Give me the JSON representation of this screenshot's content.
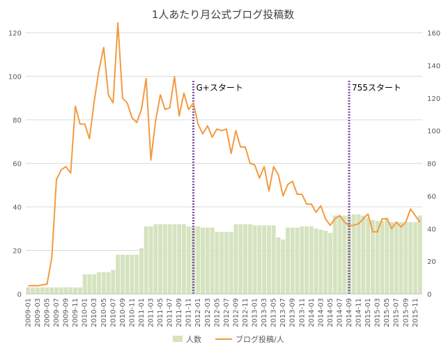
{
  "chart_data": {
    "type": "bar+line",
    "title": "1人あたり月公式ブログ投稿数",
    "colors": {
      "bar": "#d5e3bf",
      "line": "#f39a3e",
      "marker": "#7a54a6",
      "grid": "#d9d9d9"
    },
    "y_left": {
      "ylim": [
        0,
        120
      ],
      "ticks": [
        0,
        20,
        40,
        60,
        80,
        100,
        120
      ]
    },
    "y_right": {
      "ylim": [
        0,
        160
      ],
      "ticks": [
        0,
        20,
        40,
        60,
        80,
        100,
        120,
        140,
        160
      ]
    },
    "grid": true,
    "legend_position": "bottom",
    "categories": [
      "2009-01",
      "2009-02",
      "2009-03",
      "2009-04",
      "2009-05",
      "2009-06",
      "2009-07",
      "2009-08",
      "2009-09",
      "2009-10",
      "2009-11",
      "2009-12",
      "2010-01",
      "2010-02",
      "2010-03",
      "2010-04",
      "2010-05",
      "2010-06",
      "2010-07",
      "2010-08",
      "2010-09",
      "2010-10",
      "2010-11",
      "2010-12",
      "2011-01",
      "2011-02",
      "2011-03",
      "2011-04",
      "2011-05",
      "2011-06",
      "2011-07",
      "2011-08",
      "2011-09",
      "2011-10",
      "2011-11",
      "2011-12",
      "2012-01",
      "2012-02",
      "2012-03",
      "2012-04",
      "2012-05",
      "2012-06",
      "2012-07",
      "2012-08",
      "2012-09",
      "2012-10",
      "2012-11",
      "2012-12",
      "2013-01",
      "2013-02",
      "2013-03",
      "2013-04",
      "2013-05",
      "2013-06",
      "2013-07",
      "2013-08",
      "2013-09",
      "2013-10",
      "2013-11",
      "2013-12",
      "2014-01",
      "2014-02",
      "2014-03",
      "2014-04",
      "2014-05",
      "2014-06",
      "2014-07",
      "2014-08",
      "2014-09",
      "2014-10",
      "2014-11",
      "2014-12",
      "2015-01",
      "2015-02",
      "2015-03",
      "2015-04",
      "2015-05",
      "2015-06",
      "2015-07",
      "2015-08",
      "2015-09",
      "2015-10",
      "2015-11",
      "2015-12"
    ],
    "xticks": [
      "2009-01",
      "2009-03",
      "2009-05",
      "2009-07",
      "2009-09",
      "2009-11",
      "2010-01",
      "2010-03",
      "2010-05",
      "2010-07",
      "2010-09",
      "2010-11",
      "2011-01",
      "2011-03",
      "2011-05",
      "2011-07",
      "2011-09",
      "2011-11",
      "2012-01",
      "2012-03",
      "2012-05",
      "2012-07",
      "2012-09",
      "2012-11",
      "2013-01",
      "2013-03",
      "2013-05",
      "2013-07",
      "2013-09",
      "2013-11",
      "2014-01",
      "2014-03",
      "2014-05",
      "2014-07",
      "2014-09",
      "2014-11",
      "2015-01",
      "2015-03",
      "2015-05",
      "2015-07",
      "2015-09",
      "2015-11"
    ],
    "series": [
      {
        "name": "人数",
        "type": "bar",
        "axis": "left",
        "values": [
          3,
          3,
          3,
          3,
          3,
          3,
          3,
          3,
          3,
          3,
          3,
          3,
          9,
          9,
          9,
          10,
          10,
          10,
          11,
          18,
          18,
          18,
          18,
          18,
          21,
          31,
          31,
          32,
          32,
          32,
          32,
          32,
          32,
          32,
          31,
          31,
          31,
          30.5,
          30.5,
          30.5,
          28.5,
          28.5,
          28.5,
          28.5,
          32,
          32,
          32,
          32,
          31.5,
          31.5,
          31.5,
          31.5,
          31.5,
          26,
          25,
          30.5,
          30.5,
          30.5,
          31,
          31,
          31,
          30,
          29.5,
          29,
          28,
          36,
          36,
          36,
          36,
          36.5,
          36.5,
          36,
          35,
          34,
          33.5,
          33.5,
          35,
          33,
          33,
          33,
          33,
          33,
          33,
          36
        ]
      },
      {
        "name": "ブログ投稿/人",
        "type": "line",
        "axis": "right",
        "values": [
          5,
          5,
          5,
          5.5,
          6,
          22,
          70,
          76,
          78,
          74,
          115,
          104,
          104,
          95,
          118,
          137,
          151,
          122,
          117,
          166,
          120,
          117,
          108,
          105,
          113,
          132,
          82,
          106,
          122,
          113,
          114,
          133,
          109,
          123,
          113,
          117,
          104,
          98,
          103,
          96,
          101,
          100,
          101,
          86,
          100,
          90,
          90,
          80,
          79,
          71,
          78,
          63,
          78,
          73,
          60,
          67,
          69,
          61,
          61,
          55,
          55,
          50,
          54,
          46,
          42,
          46,
          48,
          44,
          42,
          42,
          43,
          46,
          49,
          38,
          38,
          46,
          46,
          40,
          44,
          41,
          44,
          52,
          48,
          44
        ]
      }
    ],
    "annotations": [
      {
        "category": "2011-12",
        "text": "G+スタート"
      },
      {
        "category": "2014-09",
        "text": "755スタート"
      }
    ]
  }
}
